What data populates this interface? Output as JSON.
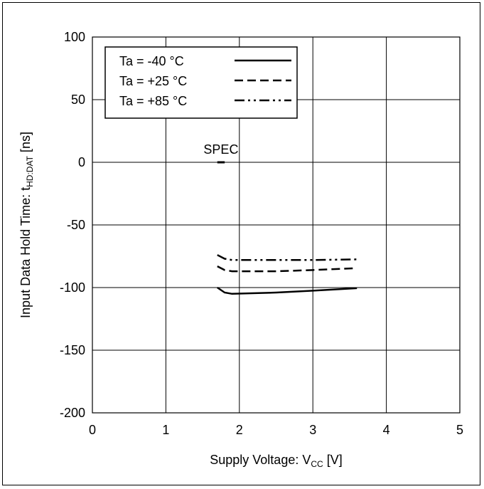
{
  "chart_data": {
    "type": "line",
    "title": "",
    "xlabel": {
      "main": "Supply Voltage: V",
      "sub": "CC",
      "unit": "[V]"
    },
    "ylabel": {
      "main": "Input Data Hold Time: t",
      "sub": "HD:DAT",
      "unit": "[ns]"
    },
    "xlim": [
      0,
      5
    ],
    "ylim": [
      -200,
      100
    ],
    "x_ticks": [
      "0",
      "1",
      "2",
      "3",
      "4",
      "5"
    ],
    "y_ticks": [
      "100",
      "50",
      "0",
      "-50",
      "-100",
      "-150",
      "-200"
    ],
    "grid": true,
    "legend_position": "top-left",
    "series": [
      {
        "name": "Ta = -40 °C",
        "line_style": "solid",
        "color": "#000000",
        "points": [
          [
            1.7,
            -100
          ],
          [
            1.8,
            -104
          ],
          [
            1.9,
            -105
          ],
          [
            2.5,
            -104
          ],
          [
            3.0,
            -102.5
          ],
          [
            3.6,
            -100.5
          ]
        ]
      },
      {
        "name": "Ta = +25 °C",
        "line_style": "dashed",
        "color": "#000000",
        "points": [
          [
            1.7,
            -83
          ],
          [
            1.8,
            -86
          ],
          [
            1.9,
            -87
          ],
          [
            2.5,
            -87
          ],
          [
            3.0,
            -86
          ],
          [
            3.6,
            -84.5
          ]
        ]
      },
      {
        "name": "Ta = +85 °C",
        "line_style": "dash-dot-dot",
        "color": "#000000",
        "points": [
          [
            1.7,
            -74
          ],
          [
            1.8,
            -77
          ],
          [
            1.9,
            -78
          ],
          [
            2.5,
            -78
          ],
          [
            3.0,
            -78
          ],
          [
            3.6,
            -77.5
          ]
        ]
      }
    ],
    "annotations": [
      {
        "label": "SPEC",
        "x_start": 1.7,
        "x_end": 1.8,
        "y": 0
      }
    ]
  }
}
